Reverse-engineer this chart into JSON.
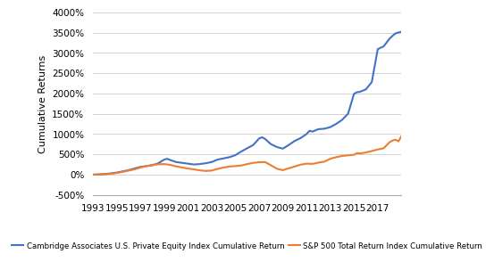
{
  "title": "",
  "ylabel": "Cumulative Returns",
  "xlabel": "",
  "background_color": "#ffffff",
  "grid_color": "#cccccc",
  "ylim": [
    -500,
    4000
  ],
  "xlim": [
    1993,
    2019
  ],
  "yticks": [
    -500,
    0,
    500,
    1000,
    1500,
    2000,
    2500,
    3000,
    3500,
    4000
  ],
  "xticks": [
    1993,
    1995,
    1997,
    1999,
    2001,
    2003,
    2005,
    2007,
    2009,
    2011,
    2013,
    2015,
    2017
  ],
  "pe_color": "#4472c4",
  "sp_color": "#ed7d31",
  "pe_label": "Cambridge Associates U.S. Private Equity Index Cumulative Return",
  "sp_label": "S&P 500 Total Return Index Cumulative Return",
  "pe_x": [
    1993,
    1993.5,
    1994,
    1994.5,
    1995,
    1995.5,
    1996,
    1996.5,
    1997,
    1997.5,
    1998,
    1998.5,
    1999,
    1999.25,
    1999.5,
    2000,
    2000.5,
    2001,
    2001.5,
    2002,
    2002.5,
    2003,
    2003.5,
    2004,
    2004.5,
    2005,
    2005.5,
    2006,
    2006.5,
    2007,
    2007.25,
    2007.5,
    2008,
    2008.5,
    2009,
    2009.5,
    2010,
    2010.5,
    2011,
    2011.25,
    2011.5,
    2012,
    2012.5,
    2013,
    2013.5,
    2014,
    2014.5,
    2015,
    2015.25,
    2015.5,
    2016,
    2016.5,
    2017,
    2017.5,
    2018,
    2018.25,
    2018.5,
    2018.75,
    2019
  ],
  "pe_y": [
    0,
    5,
    15,
    30,
    50,
    80,
    110,
    150,
    190,
    210,
    230,
    280,
    370,
    390,
    360,
    310,
    290,
    270,
    250,
    260,
    280,
    310,
    370,
    400,
    430,
    480,
    570,
    650,
    730,
    890,
    920,
    880,
    750,
    680,
    640,
    730,
    830,
    900,
    1000,
    1080,
    1060,
    1120,
    1130,
    1170,
    1250,
    1350,
    1500,
    1990,
    2030,
    2040,
    2100,
    2280,
    3090,
    3160,
    3350,
    3420,
    3480,
    3500,
    3520
  ],
  "sp_x": [
    1993,
    1993.5,
    1994,
    1994.5,
    1995,
    1995.5,
    1996,
    1996.5,
    1997,
    1997.5,
    1998,
    1998.5,
    1999,
    1999.5,
    2000,
    2000.5,
    2001,
    2001.5,
    2002,
    2002.5,
    2003,
    2003.5,
    2004,
    2004.5,
    2005,
    2005.5,
    2006,
    2006.5,
    2007,
    2007.5,
    2008,
    2008.5,
    2009,
    2009.5,
    2010,
    2010.5,
    2011,
    2011.5,
    2012,
    2012.5,
    2013,
    2013.5,
    2014,
    2014.5,
    2015,
    2015.25,
    2015.5,
    2016,
    2016.5,
    2017,
    2017.5,
    2018,
    2018.25,
    2018.5,
    2018.75,
    2019
  ],
  "sp_y": [
    0,
    5,
    10,
    20,
    40,
    70,
    100,
    130,
    175,
    210,
    240,
    255,
    260,
    240,
    205,
    175,
    150,
    130,
    105,
    90,
    100,
    140,
    175,
    200,
    210,
    225,
    260,
    290,
    305,
    310,
    230,
    145,
    110,
    155,
    200,
    245,
    270,
    265,
    295,
    320,
    390,
    430,
    460,
    475,
    490,
    530,
    520,
    545,
    580,
    620,
    650,
    800,
    840,
    860,
    820,
    950
  ],
  "linewidth": 1.5
}
